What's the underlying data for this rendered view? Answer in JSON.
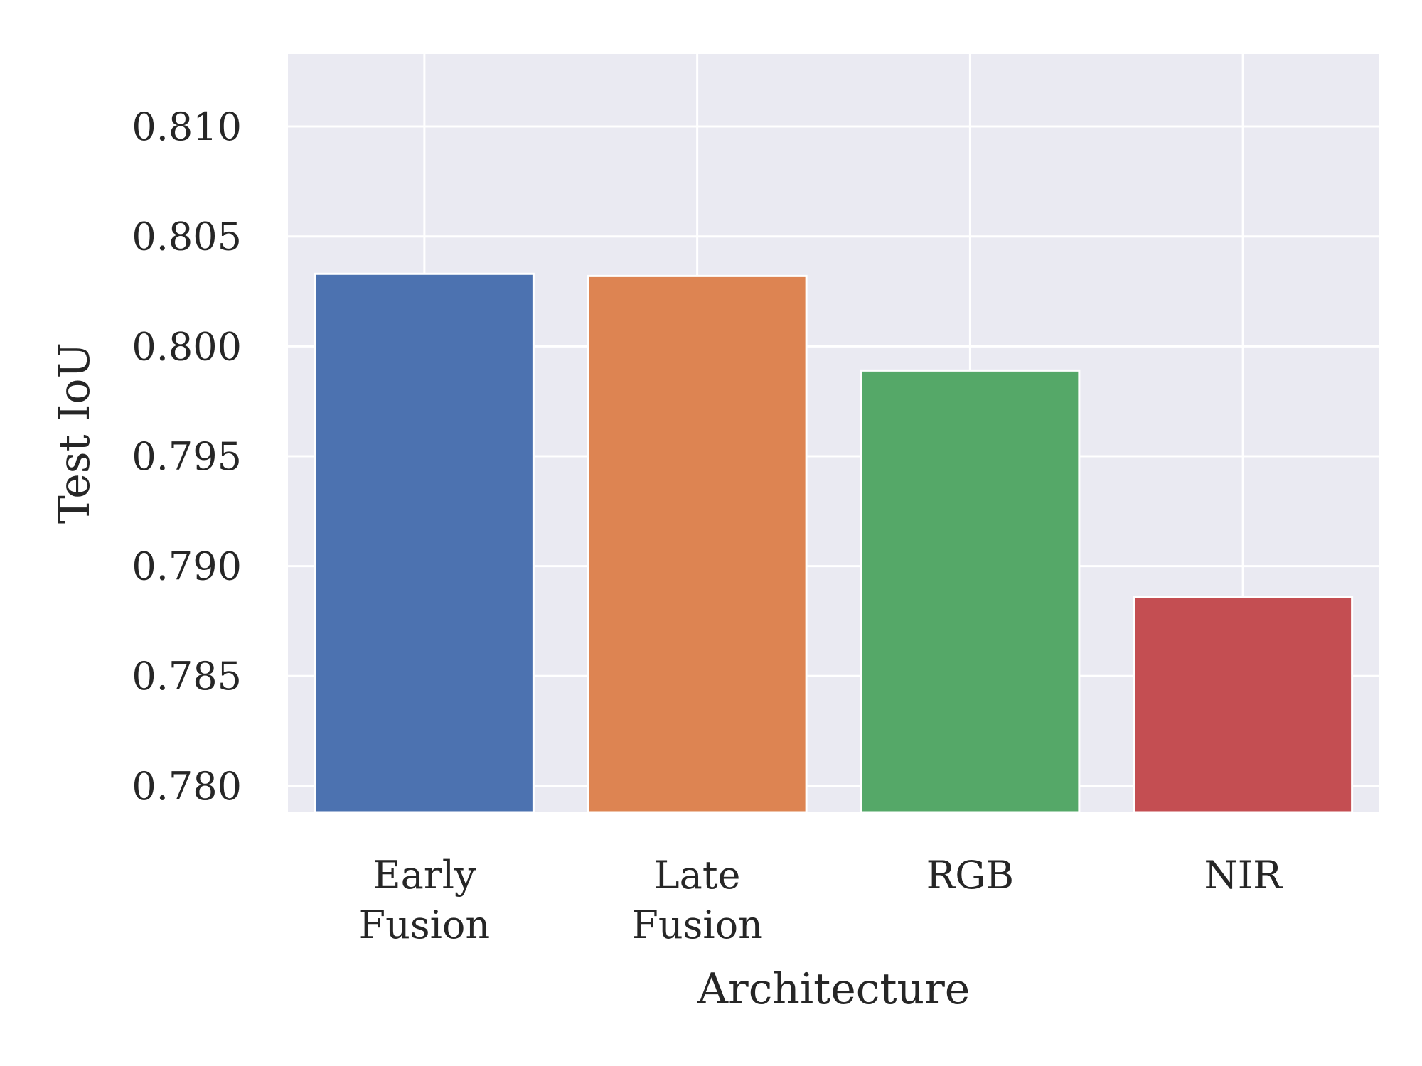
{
  "chart_data": {
    "type": "bar",
    "title": "",
    "xlabel": "Architecture",
    "ylabel": "Test IoU",
    "categories": [
      [
        "Early",
        "Fusion"
      ],
      [
        "Late",
        "Fusion"
      ],
      [
        "RGB"
      ],
      [
        "NIR"
      ]
    ],
    "values": [
      0.8033,
      0.8032,
      0.7989,
      0.7886
    ],
    "colors": [
      "#4c72b0",
      "#dd8452",
      "#55a868",
      "#c44e52"
    ],
    "ylim": [
      0.7788,
      0.8133
    ],
    "yticks": [
      0.78,
      0.785,
      0.79,
      0.795,
      0.8,
      0.805,
      0.81
    ],
    "ytick_labels": [
      "0.780",
      "0.785",
      "0.790",
      "0.795",
      "0.800",
      "0.805",
      "0.810"
    ],
    "grid": true,
    "plot_background": "#eaeaf2",
    "gridline_color": "#ffffff",
    "text_color": "#262626"
  }
}
